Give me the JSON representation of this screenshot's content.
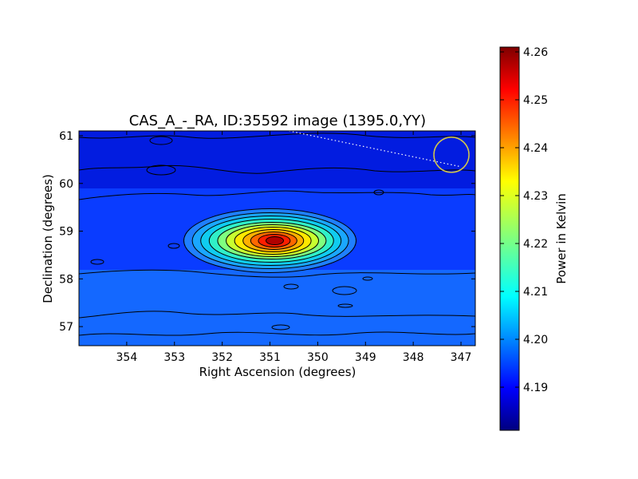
{
  "chart_data": {
    "type": "heatmap",
    "title": "CAS_A_-_RA, ID:35592 image (1395.0,YY)",
    "xlabel": "Right Ascension (degrees)",
    "ylabel": "Declination (degrees)",
    "xlim": [
      355.0,
      346.7
    ],
    "ylim": [
      56.6,
      61.1
    ],
    "x_ticks": [
      354,
      353,
      352,
      351,
      350,
      349,
      348,
      347
    ],
    "y_ticks": [
      57,
      58,
      59,
      60,
      61
    ],
    "colormap": "jet",
    "colorbar": {
      "label": "Power in Kelvin",
      "range": [
        4.181,
        4.261
      ],
      "ticks": [
        "4.19",
        "4.20",
        "4.21",
        "4.22",
        "4.23",
        "4.24",
        "4.25",
        "4.26"
      ],
      "tick_values": [
        4.19,
        4.2,
        4.21,
        4.22,
        4.23,
        4.24,
        4.25,
        4.26
      ]
    },
    "source_peak": {
      "ra": 350.9,
      "dec": 58.8,
      "value": 4.261
    },
    "contours": true,
    "marker": {
      "shape": "circle",
      "ra": 347.2,
      "dec": 60.6,
      "color": "#d4c84a"
    },
    "dotted_line": {
      "from": [
        350.6,
        61.1
      ],
      "to": [
        347.0,
        60.35
      ],
      "color": "#ffffff"
    }
  }
}
